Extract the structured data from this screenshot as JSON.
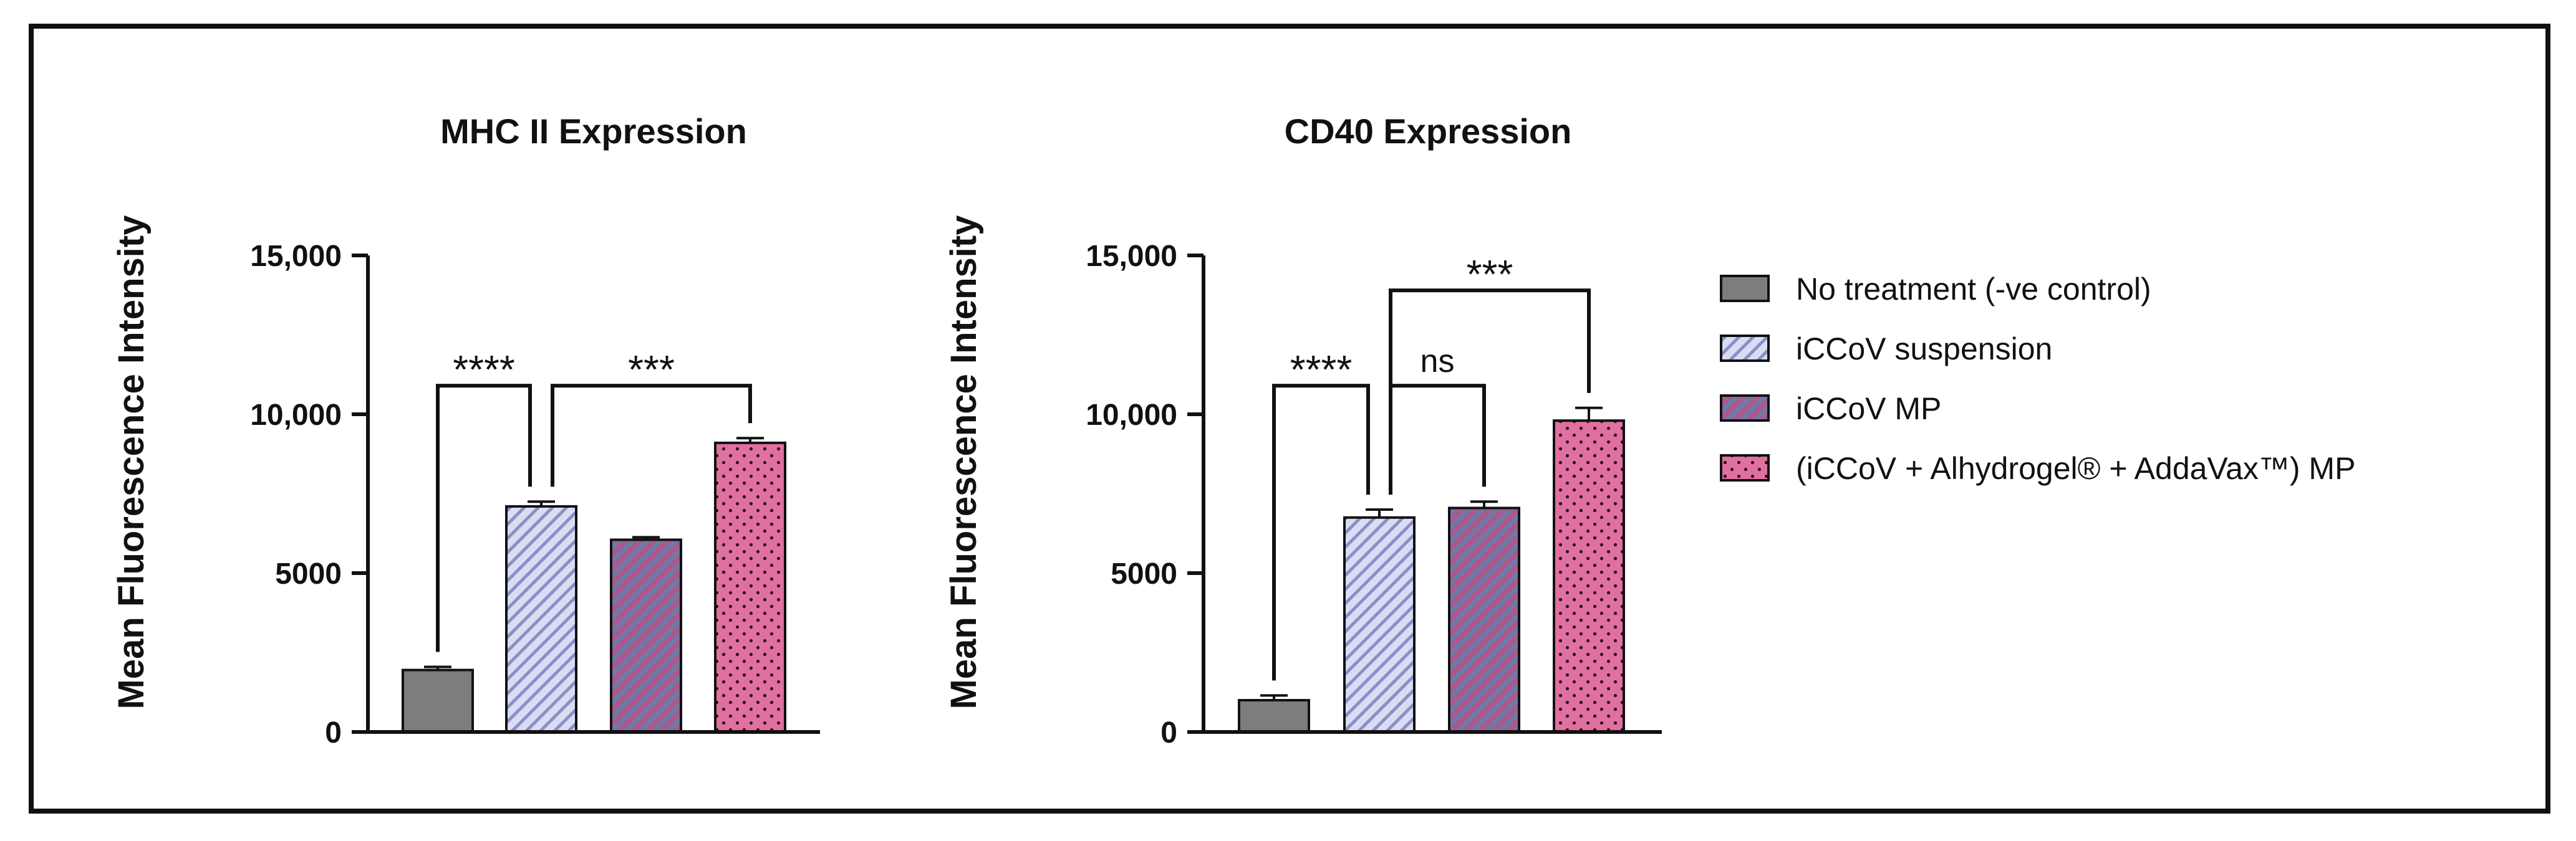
{
  "colors": {
    "no_treatment": "#7d7d7d",
    "suspension_fill": "#d9dcf3",
    "suspension_stripe": "#8a8fc4",
    "mp_fill": "#a85a8c",
    "mp_stripe": "#6e7aa8",
    "combo_fill": "#e0709f",
    "combo_dot": "#2b1020",
    "axis": "#111111"
  },
  "legend": {
    "items": [
      {
        "label": "No treatment (-ve control)",
        "style": "solid-gray"
      },
      {
        "label": "iCCoV suspension",
        "style": "hatch-lavender"
      },
      {
        "label": "iCCoV MP",
        "style": "hatch-purple"
      },
      {
        "label": "(iCCoV + Alhydrogel® + AddaVax™) MP",
        "style": "dots-pink"
      }
    ]
  },
  "chart_data": [
    {
      "type": "bar",
      "title": "MHC II Expression",
      "ylabel": "Mean Fluorescence Intensity",
      "xlabel": "",
      "ylim": [
        0,
        15000
      ],
      "yticks": [
        {
          "value": 0,
          "label": "0"
        },
        {
          "value": 5000,
          "label": "5000"
        },
        {
          "value": 10000,
          "label": "10,000"
        },
        {
          "value": 15000,
          "label": "15,000"
        }
      ],
      "categories": [
        "No treatment (-ve control)",
        "iCCoV suspension",
        "iCCoV MP",
        "(iCCoV + Alhydrogel® + AddaVax™) MP"
      ],
      "values": [
        1950,
        7100,
        6050,
        9100
      ],
      "errors": [
        100,
        150,
        80,
        150
      ],
      "significance": [
        {
          "from": 0,
          "to": 1,
          "label": "****",
          "level": 10900
        },
        {
          "from": 1,
          "to": 3,
          "label": "***",
          "level": 10900
        }
      ]
    },
    {
      "type": "bar",
      "title": "CD40 Expression",
      "ylabel": "Mean Fluorescence Intensity",
      "xlabel": "",
      "ylim": [
        0,
        15000
      ],
      "yticks": [
        {
          "value": 0,
          "label": "0"
        },
        {
          "value": 5000,
          "label": "5000"
        },
        {
          "value": 10000,
          "label": "10,000"
        },
        {
          "value": 15000,
          "label": "15,000"
        }
      ],
      "categories": [
        "No treatment (-ve control)",
        "iCCoV suspension",
        "iCCoV MP",
        "(iCCoV + Alhydrogel® + AddaVax™) MP"
      ],
      "values": [
        1000,
        6750,
        7050,
        9800
      ],
      "errors": [
        150,
        250,
        200,
        400
      ],
      "significance": [
        {
          "from": 0,
          "to": 1,
          "label": "****",
          "level": 10900
        },
        {
          "from": 1,
          "to": 2,
          "label": "ns",
          "level": 10900
        },
        {
          "from": 1,
          "to": 3,
          "label": "***",
          "level": 13900
        }
      ]
    }
  ]
}
